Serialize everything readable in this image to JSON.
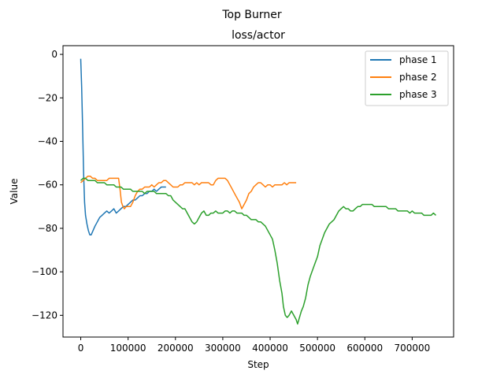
{
  "chart_data": {
    "type": "line",
    "suptitle": "Top Burner",
    "title": "loss/actor",
    "xlabel": "Step",
    "ylabel": "Value",
    "xlim": [
      -37500,
      787500
    ],
    "ylim": [
      -130,
      4
    ],
    "xticks": [
      0,
      100000,
      200000,
      300000,
      400000,
      500000,
      600000,
      700000
    ],
    "yticks": [
      0,
      -20,
      -40,
      -60,
      -80,
      -100,
      -120
    ],
    "legend_position": "top-right",
    "series": [
      {
        "name": "phase 1",
        "color": "#1f77b4",
        "points": [
          [
            0,
            -2
          ],
          [
            2000,
            -15
          ],
          [
            4000,
            -35
          ],
          [
            6000,
            -55
          ],
          [
            8000,
            -68
          ],
          [
            10000,
            -74
          ],
          [
            13000,
            -78
          ],
          [
            16000,
            -81
          ],
          [
            19000,
            -83
          ],
          [
            22000,
            -83
          ],
          [
            26000,
            -81
          ],
          [
            30000,
            -79
          ],
          [
            35000,
            -77
          ],
          [
            40000,
            -75
          ],
          [
            45000,
            -74
          ],
          [
            50000,
            -73
          ],
          [
            55000,
            -72
          ],
          [
            60000,
            -73
          ],
          [
            65000,
            -72
          ],
          [
            70000,
            -71
          ],
          [
            75000,
            -73
          ],
          [
            80000,
            -72
          ],
          [
            85000,
            -71
          ],
          [
            90000,
            -70
          ],
          [
            95000,
            -70
          ],
          [
            100000,
            -69
          ],
          [
            105000,
            -68
          ],
          [
            110000,
            -67
          ],
          [
            115000,
            -67
          ],
          [
            120000,
            -66
          ],
          [
            125000,
            -65
          ],
          [
            130000,
            -65
          ],
          [
            135000,
            -64
          ],
          [
            140000,
            -64
          ],
          [
            145000,
            -63
          ],
          [
            150000,
            -63
          ],
          [
            155000,
            -62
          ],
          [
            160000,
            -63
          ],
          [
            165000,
            -62
          ],
          [
            170000,
            -61
          ],
          [
            175000,
            -61
          ],
          [
            180000,
            -61
          ]
        ]
      },
      {
        "name": "phase 2",
        "color": "#ff7f0e",
        "points": [
          [
            0,
            -59
          ],
          [
            5000,
            -58
          ],
          [
            10000,
            -57
          ],
          [
            15000,
            -56
          ],
          [
            20000,
            -56
          ],
          [
            25000,
            -57
          ],
          [
            30000,
            -57
          ],
          [
            35000,
            -58
          ],
          [
            40000,
            -58
          ],
          [
            45000,
            -58
          ],
          [
            50000,
            -58
          ],
          [
            55000,
            -58
          ],
          [
            60000,
            -57
          ],
          [
            65000,
            -57
          ],
          [
            70000,
            -57
          ],
          [
            75000,
            -57
          ],
          [
            80000,
            -57
          ],
          [
            83000,
            -62
          ],
          [
            86000,
            -68
          ],
          [
            89000,
            -70
          ],
          [
            92000,
            -71
          ],
          [
            96000,
            -70
          ],
          [
            100000,
            -70
          ],
          [
            105000,
            -70
          ],
          [
            110000,
            -68
          ],
          [
            115000,
            -65
          ],
          [
            120000,
            -63
          ],
          [
            125000,
            -62
          ],
          [
            130000,
            -62
          ],
          [
            135000,
            -61
          ],
          [
            140000,
            -61
          ],
          [
            145000,
            -61
          ],
          [
            150000,
            -60
          ],
          [
            155000,
            -61
          ],
          [
            160000,
            -60
          ],
          [
            165000,
            -59
          ],
          [
            170000,
            -59
          ],
          [
            175000,
            -58
          ],
          [
            180000,
            -58
          ],
          [
            185000,
            -59
          ],
          [
            190000,
            -60
          ],
          [
            195000,
            -61
          ],
          [
            200000,
            -61
          ],
          [
            205000,
            -61
          ],
          [
            210000,
            -60
          ],
          [
            215000,
            -60
          ],
          [
            220000,
            -59
          ],
          [
            225000,
            -59
          ],
          [
            230000,
            -59
          ],
          [
            235000,
            -59
          ],
          [
            240000,
            -60
          ],
          [
            245000,
            -59
          ],
          [
            250000,
            -60
          ],
          [
            255000,
            -59
          ],
          [
            260000,
            -59
          ],
          [
            265000,
            -59
          ],
          [
            270000,
            -59
          ],
          [
            275000,
            -60
          ],
          [
            280000,
            -60
          ],
          [
            285000,
            -58
          ],
          [
            290000,
            -57
          ],
          [
            295000,
            -57
          ],
          [
            300000,
            -57
          ],
          [
            305000,
            -57
          ],
          [
            310000,
            -58
          ],
          [
            315000,
            -60
          ],
          [
            320000,
            -62
          ],
          [
            325000,
            -64
          ],
          [
            330000,
            -66
          ],
          [
            335000,
            -68
          ],
          [
            340000,
            -71
          ],
          [
            345000,
            -69
          ],
          [
            350000,
            -67
          ],
          [
            355000,
            -64
          ],
          [
            360000,
            -63
          ],
          [
            365000,
            -61
          ],
          [
            370000,
            -60
          ],
          [
            375000,
            -59
          ],
          [
            380000,
            -59
          ],
          [
            385000,
            -60
          ],
          [
            390000,
            -61
          ],
          [
            395000,
            -60
          ],
          [
            400000,
            -60
          ],
          [
            405000,
            -61
          ],
          [
            410000,
            -60
          ],
          [
            415000,
            -60
          ],
          [
            420000,
            -60
          ],
          [
            425000,
            -60
          ],
          [
            430000,
            -59
          ],
          [
            435000,
            -60
          ],
          [
            440000,
            -59
          ],
          [
            445000,
            -59
          ],
          [
            450000,
            -59
          ],
          [
            455000,
            -59
          ]
        ]
      },
      {
        "name": "phase 3",
        "color": "#2ca02c",
        "points": [
          [
            0,
            -58
          ],
          [
            5000,
            -57
          ],
          [
            10000,
            -57
          ],
          [
            15000,
            -58
          ],
          [
            20000,
            -58
          ],
          [
            25000,
            -58
          ],
          [
            30000,
            -58
          ],
          [
            35000,
            -59
          ],
          [
            40000,
            -59
          ],
          [
            45000,
            -59
          ],
          [
            50000,
            -59
          ],
          [
            55000,
            -60
          ],
          [
            60000,
            -60
          ],
          [
            65000,
            -60
          ],
          [
            70000,
            -60
          ],
          [
            75000,
            -61
          ],
          [
            80000,
            -61
          ],
          [
            85000,
            -61
          ],
          [
            90000,
            -62
          ],
          [
            95000,
            -62
          ],
          [
            100000,
            -62
          ],
          [
            105000,
            -62
          ],
          [
            110000,
            -63
          ],
          [
            115000,
            -63
          ],
          [
            120000,
            -63
          ],
          [
            125000,
            -63
          ],
          [
            130000,
            -63
          ],
          [
            135000,
            -64
          ],
          [
            140000,
            -63
          ],
          [
            145000,
            -63
          ],
          [
            150000,
            -63
          ],
          [
            155000,
            -63
          ],
          [
            160000,
            -64
          ],
          [
            165000,
            -64
          ],
          [
            170000,
            -64
          ],
          [
            175000,
            -64
          ],
          [
            180000,
            -64
          ],
          [
            185000,
            -65
          ],
          [
            190000,
            -65
          ],
          [
            195000,
            -67
          ],
          [
            200000,
            -68
          ],
          [
            205000,
            -69
          ],
          [
            210000,
            -70
          ],
          [
            215000,
            -71
          ],
          [
            220000,
            -71
          ],
          [
            225000,
            -73
          ],
          [
            230000,
            -75
          ],
          [
            235000,
            -77
          ],
          [
            240000,
            -78
          ],
          [
            245000,
            -77
          ],
          [
            250000,
            -75
          ],
          [
            255000,
            -73
          ],
          [
            260000,
            -72
          ],
          [
            265000,
            -74
          ],
          [
            270000,
            -74
          ],
          [
            275000,
            -73
          ],
          [
            280000,
            -73
          ],
          [
            285000,
            -72
          ],
          [
            290000,
            -73
          ],
          [
            295000,
            -73
          ],
          [
            300000,
            -73
          ],
          [
            305000,
            -72
          ],
          [
            310000,
            -72
          ],
          [
            315000,
            -73
          ],
          [
            320000,
            -72
          ],
          [
            325000,
            -72
          ],
          [
            330000,
            -73
          ],
          [
            335000,
            -73
          ],
          [
            340000,
            -73
          ],
          [
            345000,
            -74
          ],
          [
            350000,
            -74
          ],
          [
            355000,
            -75
          ],
          [
            360000,
            -76
          ],
          [
            365000,
            -76
          ],
          [
            370000,
            -76
          ],
          [
            375000,
            -77
          ],
          [
            380000,
            -77
          ],
          [
            385000,
            -78
          ],
          [
            390000,
            -79
          ],
          [
            395000,
            -81
          ],
          [
            400000,
            -83
          ],
          [
            405000,
            -85
          ],
          [
            410000,
            -90
          ],
          [
            415000,
            -96
          ],
          [
            420000,
            -104
          ],
          [
            425000,
            -110
          ],
          [
            428000,
            -116
          ],
          [
            432000,
            -120
          ],
          [
            436000,
            -121
          ],
          [
            440000,
            -120
          ],
          [
            445000,
            -118
          ],
          [
            450000,
            -120
          ],
          [
            455000,
            -122
          ],
          [
            458000,
            -124
          ],
          [
            462000,
            -121
          ],
          [
            466000,
            -118
          ],
          [
            470000,
            -116
          ],
          [
            475000,
            -112
          ],
          [
            480000,
            -106
          ],
          [
            485000,
            -102
          ],
          [
            490000,
            -99
          ],
          [
            495000,
            -96
          ],
          [
            500000,
            -93
          ],
          [
            505000,
            -88
          ],
          [
            510000,
            -85
          ],
          [
            515000,
            -82
          ],
          [
            520000,
            -80
          ],
          [
            525000,
            -78
          ],
          [
            530000,
            -77
          ],
          [
            535000,
            -76
          ],
          [
            540000,
            -74
          ],
          [
            545000,
            -72
          ],
          [
            550000,
            -71
          ],
          [
            555000,
            -70
          ],
          [
            560000,
            -71
          ],
          [
            565000,
            -71
          ],
          [
            570000,
            -72
          ],
          [
            575000,
            -72
          ],
          [
            580000,
            -71
          ],
          [
            585000,
            -70
          ],
          [
            590000,
            -70
          ],
          [
            595000,
            -69
          ],
          [
            600000,
            -69
          ],
          [
            605000,
            -69
          ],
          [
            610000,
            -69
          ],
          [
            615000,
            -69
          ],
          [
            620000,
            -70
          ],
          [
            625000,
            -70
          ],
          [
            630000,
            -70
          ],
          [
            635000,
            -70
          ],
          [
            640000,
            -70
          ],
          [
            645000,
            -70
          ],
          [
            650000,
            -71
          ],
          [
            655000,
            -71
          ],
          [
            660000,
            -71
          ],
          [
            665000,
            -71
          ],
          [
            670000,
            -72
          ],
          [
            675000,
            -72
          ],
          [
            680000,
            -72
          ],
          [
            685000,
            -72
          ],
          [
            690000,
            -72
          ],
          [
            695000,
            -73
          ],
          [
            700000,
            -72
          ],
          [
            705000,
            -73
          ],
          [
            710000,
            -73
          ],
          [
            715000,
            -73
          ],
          [
            720000,
            -73
          ],
          [
            725000,
            -74
          ],
          [
            730000,
            -74
          ],
          [
            735000,
            -74
          ],
          [
            740000,
            -74
          ],
          [
            745000,
            -73
          ],
          [
            750000,
            -74
          ]
        ]
      }
    ]
  }
}
